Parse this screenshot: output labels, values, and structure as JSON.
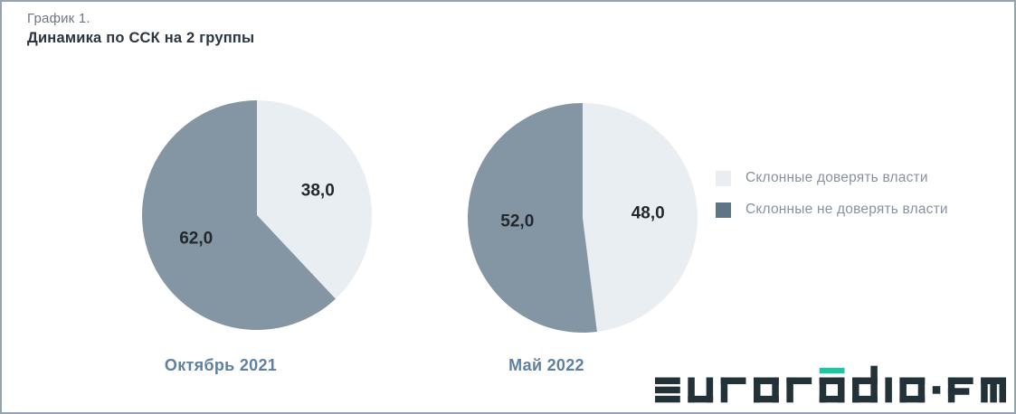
{
  "page": {
    "background": "#ffffff",
    "border_color": "#95a4b0"
  },
  "header": {
    "eyebrow": "График 1.",
    "title": "Динамика по ССК на 2 группы"
  },
  "chart_data": {
    "type": "pie",
    "title": "Динамика по ССК на 2 группы",
    "subtitle": "График 1.",
    "decimal_separator": ",",
    "direction": "clockwise",
    "start_angle_deg": 0,
    "legend_position": "right",
    "label_color": "#22282e",
    "legend": [
      {
        "label": "Склонные доверять власти",
        "color": "#e9eef3",
        "swatch_color": "#e9eef3"
      },
      {
        "label": "Склонные не доверять власти",
        "color": "#8496a4",
        "swatch_color": "#5e7487"
      }
    ],
    "pies": [
      {
        "label": "Октябрь 2021",
        "values": [
          38.0,
          62.0
        ],
        "display_values": [
          "38,0",
          "62,0"
        ]
      },
      {
        "label": "Май 2022",
        "values": [
          48.0,
          52.0
        ],
        "display_values": [
          "48,0",
          "52,0"
        ]
      }
    ]
  },
  "logo": {
    "text": "euroradio.fm",
    "color": "#233239",
    "accent_color": "#1dc5a3",
    "accent_letter": "a"
  }
}
